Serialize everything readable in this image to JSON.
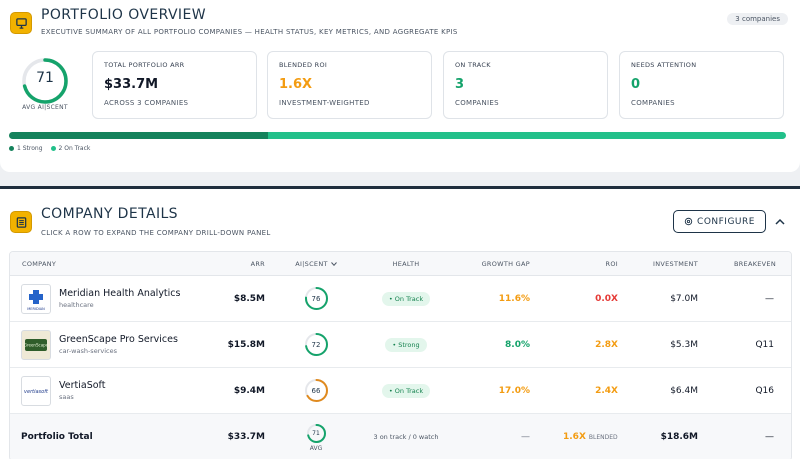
{
  "overview": {
    "title": "PORTFOLIO OVERVIEW",
    "subtitle": "EXECUTIVE SUMMARY OF ALL PORTFOLIO COMPANIES — HEALTH STATUS, KEY METRICS, AND AGGREGATE KPIS",
    "companies_pill": "3 companies",
    "score": {
      "value": "71",
      "label": "AVG AI|SCENT",
      "fraction": 0.71,
      "color": "#15a36b"
    },
    "kpis": [
      {
        "label": "TOTAL PORTFOLIO ARR",
        "value": "$33.7M",
        "sub": "ACROSS 3 COMPANIES",
        "color": "#111827"
      },
      {
        "label": "BLENDED ROI",
        "value": "1.6X",
        "sub": "INVESTMENT-WEIGHTED",
        "color": "#f39c12"
      },
      {
        "label": "ON TRACK",
        "value": "3",
        "sub": "COMPANIES",
        "color": "#15a36b"
      },
      {
        "label": "NEEDS ATTENTION",
        "value": "0",
        "sub": "COMPANIES",
        "color": "#15a36b"
      }
    ],
    "health_bar": {
      "strong": 1,
      "on_track": 2,
      "strong_color": "#15825c",
      "on_track_color": "#22c08a"
    },
    "legend": [
      {
        "label": "1 Strong",
        "color": "#15825c"
      },
      {
        "label": "2 On Track",
        "color": "#22c08a"
      }
    ]
  },
  "details": {
    "title": "COMPANY DETAILS",
    "subtitle": "CLICK A ROW TO EXPAND THE COMPANY DRILL-DOWN PANEL",
    "configure_label": "CONFIGURE",
    "columns": {
      "company": "COMPANY",
      "arr": "ARR",
      "aiscent": "AI|SCENT",
      "health": "HEALTH",
      "growth_gap": "GROWTH GAP",
      "roi": "ROI",
      "investment": "INVESTMENT",
      "breakeven": "BREAKEVEN"
    },
    "rows": [
      {
        "name": "Meridian Health Analytics",
        "sector": "healthcare",
        "logo_text": "MERIDIAN",
        "arr": "$8.5M",
        "score": "76",
        "score_fraction": 0.76,
        "score_color": "#15a36b",
        "health": "• On Track",
        "growth_gap": "11.6%",
        "growth_color": "#f39c12",
        "roi": "0.0X",
        "roi_color": "#e53935",
        "investment": "$7.0M",
        "breakeven": "—"
      },
      {
        "name": "GreenScape Pro Services",
        "sector": "car-wash-services",
        "logo_text": "GreenScape",
        "arr": "$15.8M",
        "score": "72",
        "score_fraction": 0.72,
        "score_color": "#15a36b",
        "health": "• Strong",
        "growth_gap": "8.0%",
        "growth_color": "#15a36b",
        "roi": "2.8X",
        "roi_color": "#f39c12",
        "investment": "$5.3M",
        "breakeven": "Q11"
      },
      {
        "name": "VertiaSoft",
        "sector": "saas",
        "logo_text": "vertiasoft",
        "arr": "$9.4M",
        "score": "66",
        "score_fraction": 0.66,
        "score_color": "#e08a1e",
        "health": "• On Track",
        "growth_gap": "17.0%",
        "growth_color": "#f39c12",
        "roi": "2.4X",
        "roi_color": "#f39c12",
        "investment": "$6.4M",
        "breakeven": "Q16"
      }
    ],
    "total": {
      "label": "Portfolio Total",
      "arr": "$33.7M",
      "score": "71",
      "score_fraction": 0.71,
      "score_color": "#15a36b",
      "score_sub": "AVG",
      "health": "3 on track / 0 watch",
      "growth_gap": "—",
      "roi": "1.6X",
      "roi_suffix": "BLENDED",
      "investment": "$18.6M",
      "breakeven": "—"
    }
  }
}
